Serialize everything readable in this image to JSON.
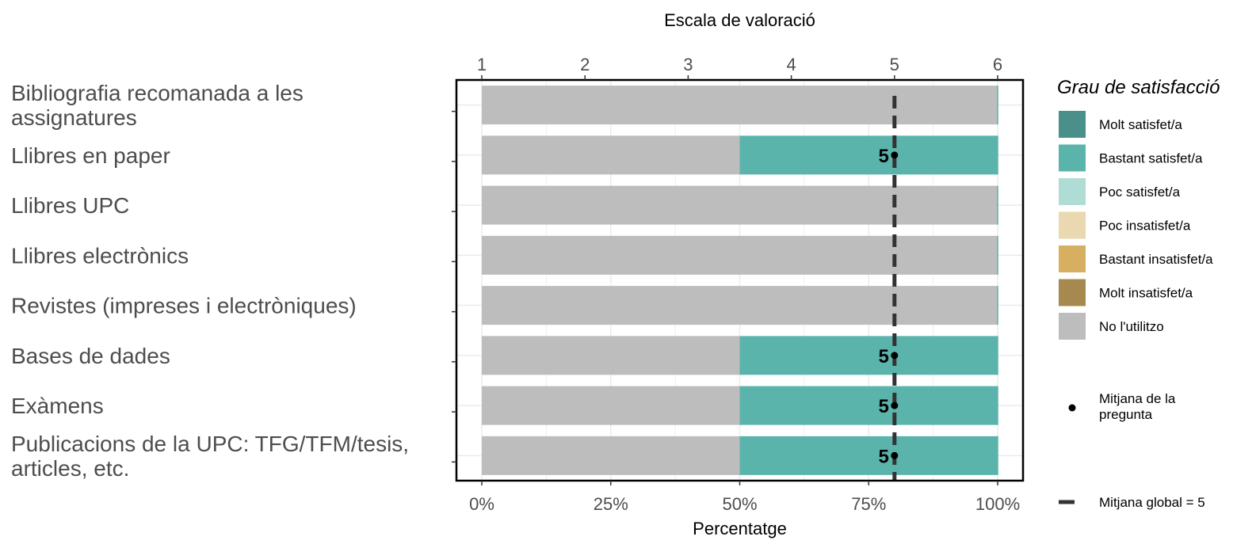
{
  "chart_data": {
    "type": "bar",
    "orientation": "horizontal",
    "stacked": true,
    "categories": [
      "Bibliografia recomanada a les assignatures",
      "Llibres en paper",
      "Llibres UPC",
      "Llibres electrònics",
      "Revistes (impreses i electròniques)",
      "Bases de dades",
      "Exàmens",
      "Publicacions de la UPC: TFG/TFM/tesis, articles, etc."
    ],
    "category_lines": [
      [
        "Bibliografia recomanada a les",
        "assignatures"
      ],
      [
        "Llibres en paper"
      ],
      [
        "Llibres UPC"
      ],
      [
        "Llibres electrònics"
      ],
      [
        "Revistes (impreses i electròniques)"
      ],
      [
        "Bases de dades"
      ],
      [
        "Exàmens"
      ],
      [
        "Publicacions de la UPC: TFG/TFM/tesis,",
        "articles, etc."
      ]
    ],
    "series": [
      {
        "name": "No l'utilitzo",
        "color": "#bdbdbd",
        "values": [
          100,
          50,
          100,
          100,
          100,
          50,
          50,
          50
        ]
      },
      {
        "name": "Molt insatisfet/a",
        "color": "#a6894e",
        "values": [
          0,
          0,
          0,
          0,
          0,
          0,
          0,
          0
        ]
      },
      {
        "name": "Bastant insatisfet/a",
        "color": "#d6b060",
        "values": [
          0,
          0,
          0,
          0,
          0,
          0,
          0,
          0
        ]
      },
      {
        "name": "Poc insatisfet/a",
        "color": "#ead8b0",
        "values": [
          0,
          0,
          0,
          0,
          0,
          0,
          0,
          0
        ]
      },
      {
        "name": "Poc satisfet/a",
        "color": "#b0dcd6",
        "values": [
          0,
          0,
          0,
          0,
          0,
          0,
          0,
          0
        ]
      },
      {
        "name": "Bastant satisfet/a",
        "color": "#5bb4ac",
        "values": [
          0,
          50,
          0,
          0,
          0,
          50,
          50,
          50
        ]
      },
      {
        "name": "Molt satisfet/a",
        "color": "#4a8f8a",
        "values": [
          0,
          0,
          0,
          0,
          0,
          0,
          0,
          0
        ]
      }
    ],
    "question_means": [
      null,
      5,
      null,
      null,
      null,
      5,
      5,
      5
    ],
    "question_mean_labels": [
      "",
      "5",
      "",
      "",
      "",
      "5",
      "5",
      "5"
    ],
    "global_mean": 5,
    "xlabel": "Percentatge",
    "x_ticks": [
      "0%",
      "25%",
      "50%",
      "75%",
      "100%"
    ],
    "x_tick_values": [
      0,
      25,
      50,
      75,
      100
    ],
    "xlim": [
      0,
      100
    ],
    "secondary_xlabel": "Escala de valoració",
    "secondary_ticks": [
      "1",
      "2",
      "3",
      "4",
      "5",
      "6"
    ],
    "secondary_tick_values": [
      1,
      2,
      3,
      4,
      5,
      6
    ],
    "secondary_lim": [
      1,
      6
    ],
    "grid": true,
    "legend": {
      "title": "Grau de satisfacció",
      "placement": "right",
      "items": [
        {
          "label": "Molt satisfet/a",
          "color": "#4a8f8a"
        },
        {
          "label": "Bastant satisfet/a",
          "color": "#5bb4ac"
        },
        {
          "label": "Poc satisfet/a",
          "color": "#b0dcd6"
        },
        {
          "label": "Poc insatisfet/a",
          "color": "#ead8b0"
        },
        {
          "label": "Bastant insatisfet/a",
          "color": "#d6b060"
        },
        {
          "label": "Molt insatisfet/a",
          "color": "#a6894e"
        },
        {
          "label": "No l'utilitzo",
          "color": "#bdbdbd"
        }
      ],
      "mean_point_label_lines": [
        "Mitjana de la",
        "pregunta"
      ],
      "global_mean_label": "Mitjana global =  5"
    },
    "colors": {
      "mean_line": "#333333",
      "grid": "#ebebeb",
      "frame": "#000000"
    }
  }
}
